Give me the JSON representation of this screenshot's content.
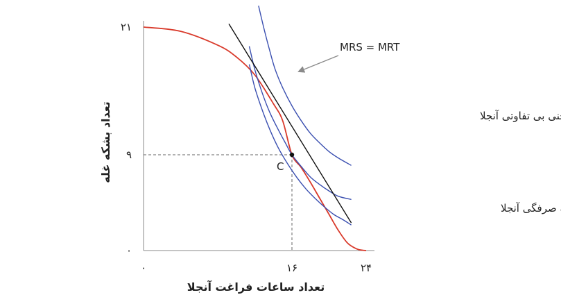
{
  "chart_data": {
    "type": "line",
    "title": "",
    "xlabel": "تعداد ساعات فراغت آنجلا",
    "ylabel": "تعداد بشکه غله",
    "xlim": [
      0,
      24
    ],
    "ylim": [
      0,
      21
    ],
    "x_ticks": [
      {
        "value": 0,
        "label": "۰"
      },
      {
        "value": 16,
        "label": "۱۶"
      },
      {
        "value": 24,
        "label": "۲۴"
      }
    ],
    "y_ticks": [
      {
        "value": 0,
        "label": "۰"
      },
      {
        "value": 9,
        "label": "۹"
      },
      {
        "value": 21,
        "label": "۲۱"
      }
    ],
    "grid": false,
    "colors": {
      "frontier": "#d93a2b",
      "indifference": "#3a4fb0",
      "tangent": "#111111",
      "axis": "#888888",
      "arrow": "#8a8a8a"
    },
    "series": [
      {
        "name": "مرز مقرون به صرفگی آنجلا",
        "kind": "frontier",
        "x": [
          0,
          4,
          8,
          10,
          12,
          14,
          15,
          16,
          17,
          18,
          19,
          20,
          21,
          22,
          23,
          23.6,
          24
        ],
        "y": [
          21,
          20.6,
          19.3,
          18.2,
          16.5,
          13.8,
          12.2,
          9,
          7.8,
          6.4,
          4.9,
          3.4,
          1.9,
          0.7,
          0.15,
          0.03,
          0
        ]
      },
      {
        "name": "",
        "kind": "indifference",
        "x": [
          12.4,
          13,
          13.6,
          14.2,
          15,
          16,
          17,
          18,
          19,
          20,
          21,
          22.4
        ],
        "y": [
          23,
          20.8,
          18.8,
          17,
          15.3,
          13.6,
          12.2,
          11,
          10.1,
          9.3,
          8.7,
          8
        ]
      },
      {
        "name": "منحنی بی تفاوتی آنجلا",
        "kind": "indifference",
        "x": [
          11.4,
          12,
          12.8,
          13.6,
          14.5,
          15.3,
          16,
          17,
          18,
          19,
          20,
          21,
          22.4
        ],
        "y": [
          19.2,
          17,
          14.8,
          13,
          11.4,
          10.1,
          9,
          7.9,
          6.9,
          6.2,
          5.6,
          5.1,
          4.8
        ]
      },
      {
        "name": "",
        "kind": "indifference",
        "x": [
          11.4,
          12,
          12.8,
          13.6,
          14.5,
          15.5,
          16.5,
          17.5,
          18.5,
          19.5,
          20.5,
          21.5,
          22.4
        ],
        "y": [
          17.5,
          15.3,
          13.2,
          11.4,
          9.7,
          8.2,
          6.9,
          5.8,
          4.9,
          4.1,
          3.4,
          2.9,
          2.4
        ]
      },
      {
        "name": "",
        "kind": "tangent",
        "x": [
          9.2,
          22.4
        ],
        "y": [
          21.3,
          2.6
        ]
      }
    ],
    "points": [
      {
        "x": 16,
        "y": 9,
        "label": "C"
      }
    ],
    "guides": [
      {
        "from": [
          16,
          9
        ],
        "to": [
          0,
          9
        ]
      },
      {
        "from": [
          16,
          9
        ],
        "to": [
          16,
          0
        ]
      }
    ],
    "annotations": {
      "tangency": "MRS = MRT",
      "indifference_label": "منحنی بی تفاوتی آنجلا",
      "frontier_label": "مرز مقرون به صرفگی آنجلا"
    }
  }
}
